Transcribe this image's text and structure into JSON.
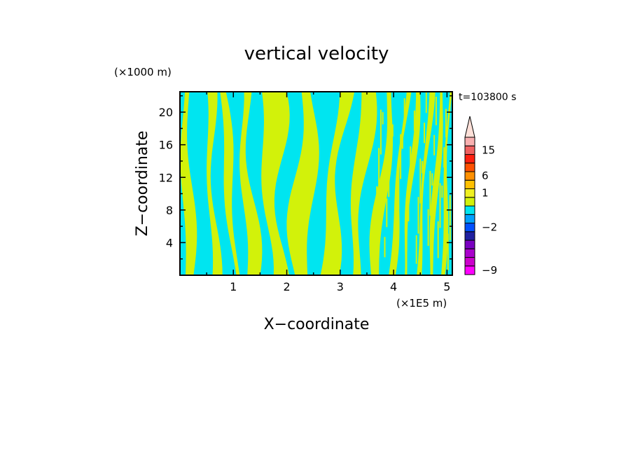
{
  "chart_data": {
    "type": "heatmap",
    "title": "vertical velocity",
    "xlabel": "X−coordinate",
    "ylabel": "Z−coordinate",
    "x_unit": "(×1E5 m)",
    "y_unit": "(×1000 m)",
    "time_label": "t=103800 s",
    "xlim": [
      0,
      5.1
    ],
    "ylim": [
      0,
      22.5
    ],
    "x_ticks": [
      1,
      2,
      3,
      4,
      5
    ],
    "y_ticks": [
      4,
      8,
      12,
      16,
      20
    ],
    "fill_colors": {
      "negative": "#00e5f0",
      "positive": "#d2f20a"
    },
    "colorbar": {
      "tick_labels": [
        "15",
        "6",
        "1",
        "−2",
        "−9"
      ],
      "segments": [
        {
          "color": "#ff00ff",
          "level": -9
        },
        {
          "color": "#cc00cc",
          "level": -7
        },
        {
          "color": "#aa00cc",
          "level": -5
        },
        {
          "color": "#7a00c0",
          "level": -4
        },
        {
          "color": "#2020a0",
          "level": -3
        },
        {
          "color": "#0050ff",
          "level": -2
        },
        {
          "color": "#00a0ff",
          "level": -1
        },
        {
          "color": "#00e5f0",
          "level": 0
        },
        {
          "color": "#d2f20a",
          "level": 0.5
        },
        {
          "color": "#f0f020",
          "level": 1
        },
        {
          "color": "#ffc000",
          "level": 3
        },
        {
          "color": "#ff9000",
          "level": 6
        },
        {
          "color": "#ff5000",
          "level": 9
        },
        {
          "color": "#ff2010",
          "level": 12
        },
        {
          "color": "#f06060",
          "level": 15
        },
        {
          "color": "#f8b0b0",
          "level": 20
        }
      ],
      "arrow_color": "#fde0d8"
    }
  }
}
